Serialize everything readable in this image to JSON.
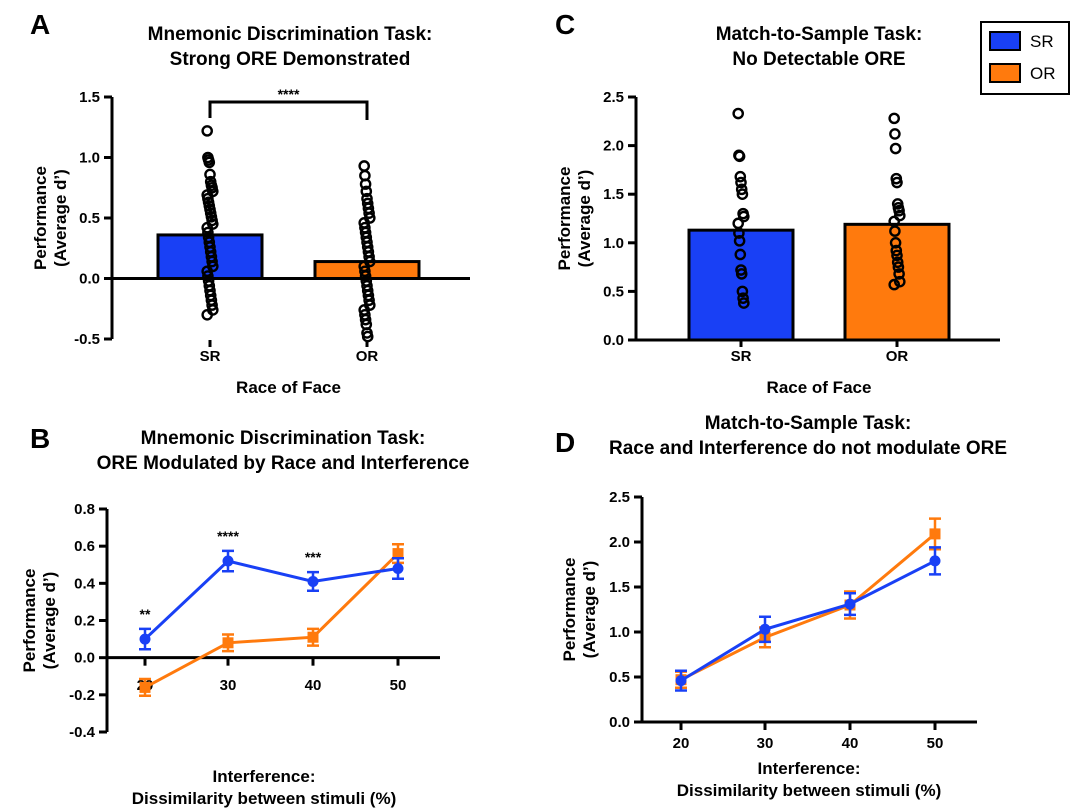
{
  "chart_data": [
    {
      "panel": "A",
      "type": "bar",
      "title": [
        "Mnemonic Discrimination Task:",
        "Strong ORE Demonstrated"
      ],
      "xlabel": "Race of Face",
      "ylabel": [
        "Performance",
        "(Average d’)"
      ],
      "ylim": [
        -0.5,
        1.5
      ],
      "yticks": [
        "-0.5",
        "0.0",
        "0.5",
        "1.0",
        "1.5"
      ],
      "categories": [
        "SR",
        "OR"
      ],
      "values": [
        0.36,
        0.14
      ],
      "colors": [
        "#1940f5",
        "#ff7a0d"
      ],
      "significance": "****",
      "points": [
        [
          1.22,
          1.0,
          0.98,
          0.96,
          0.86,
          0.8,
          0.77,
          0.75,
          0.72,
          0.69,
          0.66,
          0.63,
          0.6,
          0.57,
          0.54,
          0.51,
          0.48,
          0.45,
          0.42,
          0.38,
          0.34,
          0.3,
          0.26,
          0.22,
          0.18,
          0.14,
          0.1,
          0.06,
          0.02,
          -0.02,
          -0.06,
          -0.1,
          -0.14,
          -0.18,
          -0.22,
          -0.26,
          -0.3
        ],
        [
          0.93,
          0.85,
          0.78,
          0.72,
          0.66,
          0.62,
          0.58,
          0.54,
          0.5,
          0.46,
          0.42,
          0.38,
          0.34,
          0.3,
          0.26,
          0.22,
          0.18,
          0.14,
          0.1,
          0.06,
          0.02,
          -0.02,
          -0.06,
          -0.1,
          -0.14,
          -0.18,
          -0.22,
          -0.26,
          -0.3,
          -0.34,
          -0.38,
          -0.45,
          -0.48
        ]
      ]
    },
    {
      "panel": "C",
      "type": "bar",
      "title": [
        "Match-to-Sample Task:",
        "No Detectable ORE"
      ],
      "xlabel": "Race of Face",
      "ylabel": [
        "Performance",
        "(Average d’)"
      ],
      "ylim": [
        0,
        2.5
      ],
      "yticks": [
        "0.0",
        "0.5",
        "1.0",
        "1.5",
        "2.0",
        "2.5"
      ],
      "categories": [
        "SR",
        "OR"
      ],
      "values": [
        1.13,
        1.19
      ],
      "colors": [
        "#1940f5",
        "#ff7a0d"
      ],
      "points": [
        [
          2.33,
          1.9,
          1.89,
          1.68,
          1.62,
          1.55,
          1.5,
          1.3,
          1.27,
          1.2,
          1.1,
          1.02,
          0.88,
          0.72,
          0.68,
          0.5,
          0.43,
          0.38
        ],
        [
          2.28,
          2.12,
          1.97,
          1.66,
          1.62,
          1.4,
          1.36,
          1.33,
          1.28,
          1.22,
          1.12,
          1.0,
          0.92,
          0.87,
          0.8,
          0.75,
          0.68,
          0.6,
          0.57
        ]
      ]
    },
    {
      "panel": "B",
      "type": "line",
      "title": [
        "Mnemonic  Discrimination Task:",
        "ORE Modulated by Race and Interference"
      ],
      "xlabel": [
        "Interference:",
        "Dissimilarity between stimuli (%)"
      ],
      "ylabel": [
        "Performance",
        "(Average d’)"
      ],
      "x": [
        "20",
        "30",
        "40",
        "50"
      ],
      "ylim": [
        -0.4,
        0.8
      ],
      "yticks": [
        "-0.4",
        "-0.2",
        "0.0",
        "0.2",
        "0.4",
        "0.6",
        "0.8"
      ],
      "series": [
        {
          "name": "SR",
          "color": "#1940f5",
          "marker": "circle",
          "values": [
            0.1,
            0.52,
            0.41,
            0.48
          ],
          "err": [
            0.055,
            0.055,
            0.05,
            0.055
          ]
        },
        {
          "name": "OR",
          "color": "#ff7a0d",
          "marker": "square",
          "values": [
            -0.16,
            0.08,
            0.11,
            0.56
          ],
          "err": [
            0.045,
            0.045,
            0.045,
            0.05
          ]
        }
      ],
      "significance": [
        "**",
        "****",
        "***",
        ""
      ]
    },
    {
      "panel": "D",
      "type": "line",
      "title": [
        "Match-to-Sample Task:",
        "Race and Interference do not modulate ORE"
      ],
      "xlabel": [
        "Interference:",
        "Dissimilarity between stimuli (%)"
      ],
      "ylabel": [
        "Performance",
        "(Average d’)"
      ],
      "x": [
        "20",
        "30",
        "40",
        "50"
      ],
      "ylim": [
        0,
        2.5
      ],
      "yticks": [
        "0.0",
        "0.5",
        "1.0",
        "1.5",
        "2.0",
        "2.5"
      ],
      "series": [
        {
          "name": "SR",
          "color": "#1940f5",
          "marker": "circle",
          "values": [
            0.46,
            1.03,
            1.31,
            1.79
          ],
          "err": [
            0.11,
            0.14,
            0.12,
            0.15
          ]
        },
        {
          "name": "OR",
          "color": "#ff7a0d",
          "marker": "square",
          "values": [
            0.47,
            0.94,
            1.3,
            2.09
          ],
          "err": [
            0.09,
            0.11,
            0.15,
            0.17
          ]
        }
      ]
    }
  ],
  "panel_labels": [
    "A",
    "B",
    "C",
    "D"
  ],
  "legend": {
    "position": "top-right",
    "items": [
      {
        "label": "SR",
        "color": "#1940f5"
      },
      {
        "label": "OR",
        "color": "#ff7a0d"
      }
    ]
  }
}
